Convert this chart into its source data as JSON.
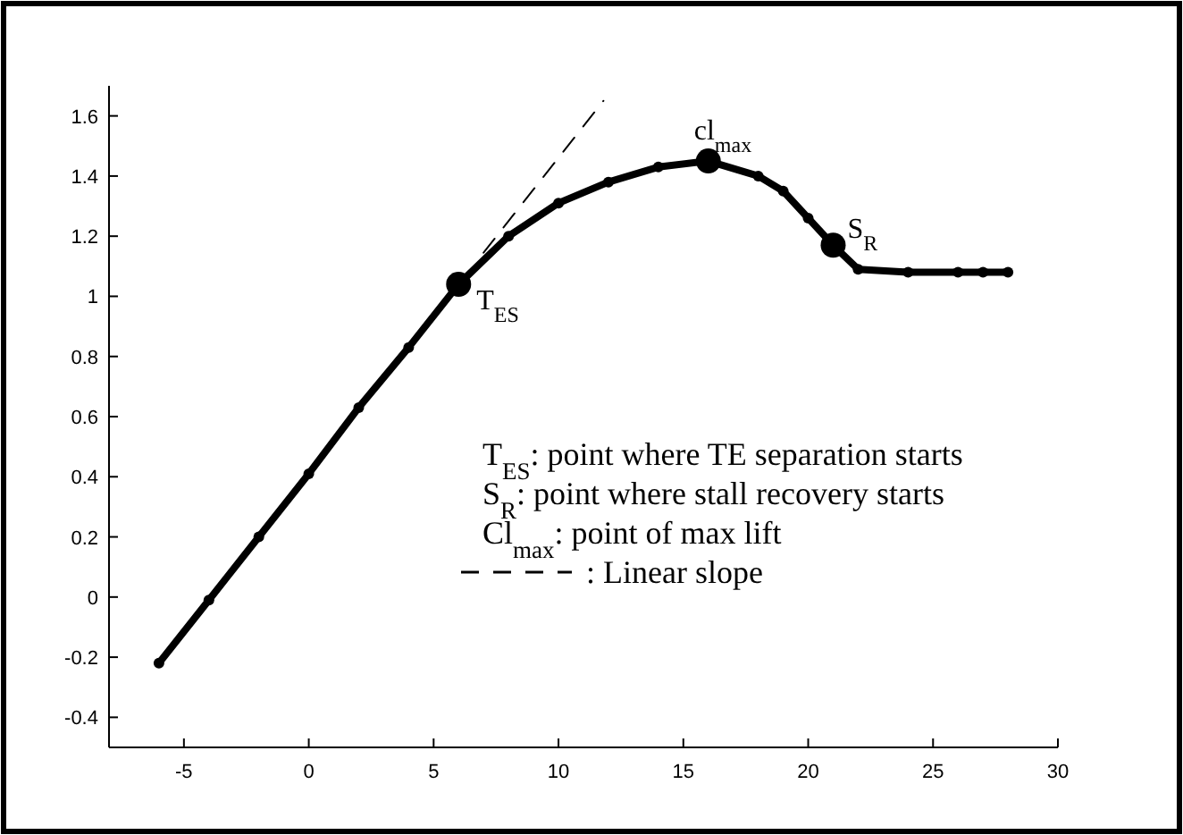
{
  "chart_data": {
    "type": "line",
    "xlim": [
      -8,
      30
    ],
    "xticks": [
      -5,
      0,
      5,
      10,
      15,
      20,
      25,
      30
    ],
    "ylim": [
      -0.5,
      1.7
    ],
    "yticks": [
      {
        "value": -0.4,
        "label": "-0.4"
      },
      {
        "value": -0.2,
        "label": "-0.2"
      },
      0,
      {
        "value": 0.2,
        "label": "0.2"
      },
      {
        "value": 0.4,
        "label": "0.4"
      },
      {
        "value": 0.6,
        "label": "0.6"
      },
      {
        "value": 0.8,
        "label": "0.8"
      },
      1,
      {
        "value": 1.2,
        "label": "1.2"
      },
      {
        "value": 1.4,
        "label": "1.4"
      },
      {
        "value": 1.6,
        "label": "1.6"
      }
    ],
    "grid": false,
    "legend": "right",
    "series": [
      {
        "color": "#000000",
        "marker": "circle",
        "line_style": "solid",
        "x": [
          -6,
          -4,
          -2,
          0,
          2,
          4,
          6,
          8,
          10,
          12,
          14,
          16,
          18,
          19,
          20,
          21,
          22,
          24,
          26,
          27,
          28
        ],
        "values": [
          -0.22,
          -0.01,
          0.2,
          0.41,
          0.63,
          0.83,
          1.04,
          1.2,
          1.31,
          1.38,
          1.43,
          1.45,
          1.4,
          1.35,
          1.26,
          1.17,
          1.09,
          1.08,
          1.08,
          1.08,
          1.08
        ]
      },
      {
        "name": ": Linear slope",
        "color": "#000000",
        "marker": "none",
        "line_style": "dashed",
        "x": [
          7,
          11.8
        ],
        "values": [
          1.145,
          1.65
        ]
      },
      {
        "type": "scatter",
        "color": "#000000",
        "marker": "circle",
        "x": [
          6,
          16,
          21
        ],
        "values": [
          1.04,
          1.45,
          1.17
        ]
      }
    ],
    "annotations": [
      {
        "text": "T$_{ES}$",
        "x": 6,
        "y": 1.04
      },
      {
        "text": "cl$_{max}$",
        "x": 16,
        "y": 1.45
      },
      {
        "text": "S$_{R}$",
        "x": 21,
        "y": 1.17
      },
      "T$_{ES}$: point where TE separation starts",
      "S$_{R}$: point where stall recovery starts",
      "Cl$_{max}$: point of max lift"
    ]
  }
}
